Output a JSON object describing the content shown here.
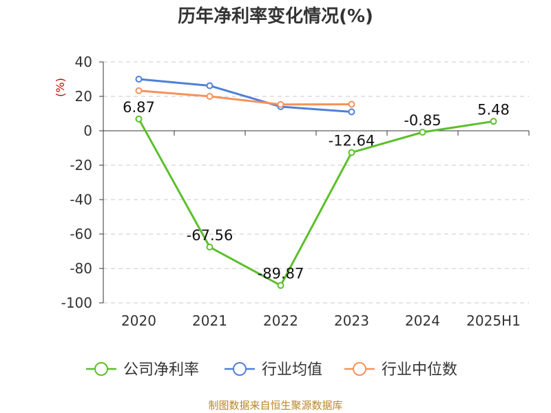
{
  "chart_data": {
    "type": "line",
    "title": "历年净利率变化情况(%)",
    "unit_label": "(%)",
    "categories": [
      "2020",
      "2021",
      "2022",
      "2023",
      "2024",
      "2025H1"
    ],
    "ylim": [
      -100,
      40
    ],
    "yticks": [
      40,
      20,
      0,
      -20,
      -40,
      -60,
      -80,
      -100
    ],
    "grid": true,
    "legend_position": "bottom",
    "series": [
      {
        "name": "公司净利率",
        "color": "#5cbf2a",
        "values": [
          6.87,
          -67.56,
          -89.87,
          -12.64,
          -0.85,
          5.48
        ],
        "labels": [
          "6.87",
          "-67.56",
          "-89.87",
          "-12.64",
          "-0.85",
          "5.48"
        ]
      },
      {
        "name": "行业均值",
        "color": "#4f7fd9",
        "values": [
          30,
          26.2,
          14,
          11,
          null,
          null
        ]
      },
      {
        "name": "行业中位数",
        "color": "#f5925a",
        "values": [
          23.3,
          20,
          15.3,
          15.4,
          null,
          null
        ]
      }
    ]
  },
  "footer": {
    "source": "制图数据来自恒生聚源数据库"
  }
}
